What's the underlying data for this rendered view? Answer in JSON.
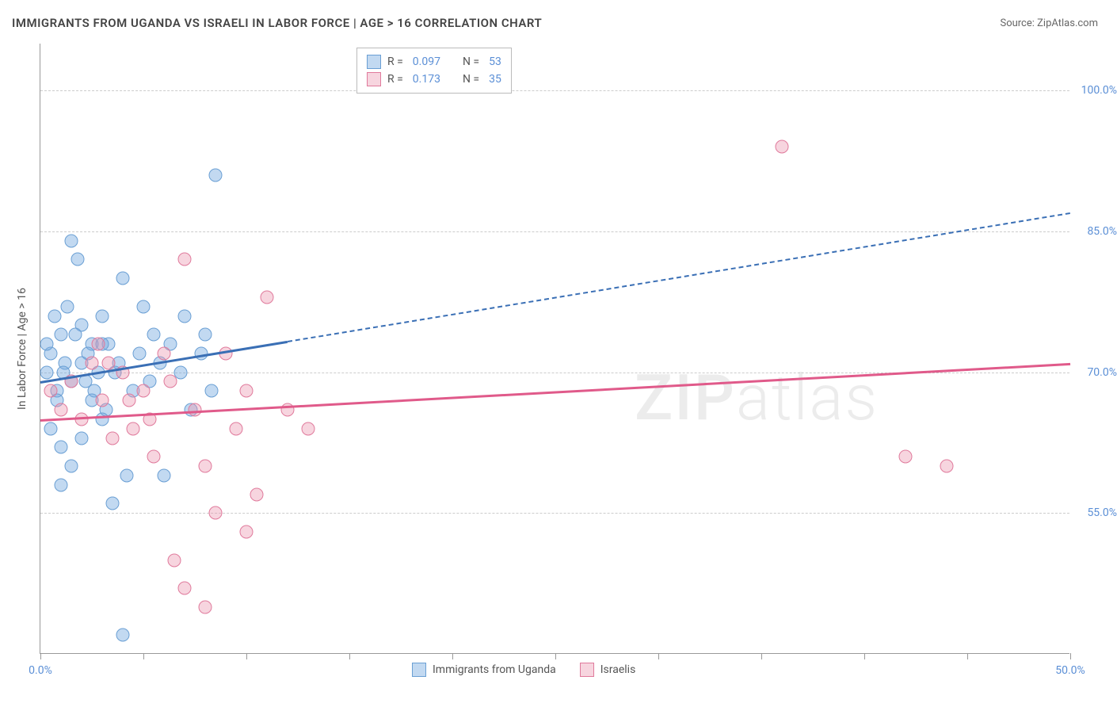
{
  "title": "IMMIGRANTS FROM UGANDA VS ISRAELI IN LABOR FORCE | AGE > 16 CORRELATION CHART",
  "source": "Source: ZipAtlas.com",
  "y_axis_label": "In Labor Force | Age > 16",
  "watermark_a": "ZIP",
  "watermark_b": "atlas",
  "chart": {
    "type": "scatter",
    "xlim": [
      0,
      50
    ],
    "ylim": [
      40,
      105
    ],
    "x_ticks": [
      0,
      5,
      10,
      15,
      20,
      25,
      30,
      35,
      40,
      45,
      50
    ],
    "x_tick_labels": {
      "0": "0.0%",
      "50": "50.0%"
    },
    "y_ticks": [
      55,
      70,
      85,
      100
    ],
    "y_tick_labels": {
      "55": "55.0%",
      "70": "70.0%",
      "85": "85.0%",
      "100": "100.0%"
    },
    "background_color": "#ffffff",
    "grid_color": "#cccccc",
    "axis_label_color": "#5b8fd6",
    "marker_size": 17,
    "series": [
      {
        "name": "Immigrants from Uganda",
        "fill": "rgba(120,170,225,0.45)",
        "stroke": "#6a9fd4",
        "r_value": "0.097",
        "n_value": "53",
        "trend": {
          "x1": 0,
          "y1": 69,
          "x2": 50,
          "y2": 87,
          "solid_until_x": 12,
          "color": "#3a6fb5"
        },
        "points": [
          [
            0.3,
            70
          ],
          [
            0.5,
            72
          ],
          [
            0.8,
            68
          ],
          [
            1.0,
            74
          ],
          [
            1.2,
            71
          ],
          [
            1.5,
            84
          ],
          [
            1.8,
            82
          ],
          [
            2.0,
            75
          ],
          [
            2.2,
            69
          ],
          [
            2.5,
            73
          ],
          [
            2.8,
            70
          ],
          [
            3.0,
            76
          ],
          [
            3.2,
            66
          ],
          [
            3.5,
            56
          ],
          [
            3.8,
            71
          ],
          [
            4.0,
            80
          ],
          [
            4.2,
            59
          ],
          [
            4.0,
            42
          ],
          [
            1.0,
            58
          ],
          [
            1.5,
            60
          ],
          [
            2.0,
            63
          ],
          [
            0.8,
            67
          ],
          [
            1.3,
            77
          ],
          [
            1.7,
            74
          ],
          [
            2.3,
            72
          ],
          [
            2.6,
            68
          ],
          [
            3.0,
            65
          ],
          [
            3.3,
            73
          ],
          [
            3.6,
            70
          ],
          [
            4.5,
            68
          ],
          [
            5.0,
            77
          ],
          [
            5.5,
            74
          ],
          [
            6.0,
            59
          ],
          [
            7.0,
            76
          ],
          [
            8.0,
            74
          ],
          [
            8.5,
            91
          ],
          [
            4.8,
            72
          ],
          [
            5.3,
            69
          ],
          [
            5.8,
            71
          ],
          [
            6.3,
            73
          ],
          [
            6.8,
            70
          ],
          [
            7.3,
            66
          ],
          [
            7.8,
            72
          ],
          [
            8.3,
            68
          ],
          [
            0.5,
            64
          ],
          [
            1.0,
            62
          ],
          [
            1.5,
            69
          ],
          [
            2.0,
            71
          ],
          [
            2.5,
            67
          ],
          [
            3.0,
            73
          ],
          [
            0.3,
            73
          ],
          [
            0.7,
            76
          ],
          [
            1.1,
            70
          ]
        ]
      },
      {
        "name": "Israelis",
        "fill": "rgba(235,150,175,0.40)",
        "stroke": "#e07a9c",
        "r_value": "0.173",
        "n_value": "35",
        "trend": {
          "x1": 0,
          "y1": 65,
          "x2": 50,
          "y2": 71,
          "solid_until_x": 50,
          "color": "#e05a8a"
        },
        "points": [
          [
            0.5,
            68
          ],
          [
            1.0,
            66
          ],
          [
            1.5,
            69
          ],
          [
            2.0,
            65
          ],
          [
            2.5,
            71
          ],
          [
            3.0,
            67
          ],
          [
            3.5,
            63
          ],
          [
            4.0,
            70
          ],
          [
            4.5,
            64
          ],
          [
            5.0,
            68
          ],
          [
            5.5,
            61
          ],
          [
            6.0,
            72
          ],
          [
            6.5,
            50
          ],
          [
            7.0,
            82
          ],
          [
            7.5,
            66
          ],
          [
            8.0,
            60
          ],
          [
            8.5,
            55
          ],
          [
            9.0,
            72
          ],
          [
            9.5,
            64
          ],
          [
            10.0,
            68
          ],
          [
            10.0,
            53
          ],
          [
            10.5,
            57
          ],
          [
            11.0,
            78
          ],
          [
            8.0,
            45
          ],
          [
            7.0,
            47
          ],
          [
            12.0,
            66
          ],
          [
            13.0,
            64
          ],
          [
            2.8,
            73
          ],
          [
            3.3,
            71
          ],
          [
            4.3,
            67
          ],
          [
            5.3,
            65
          ],
          [
            36.0,
            94
          ],
          [
            42.0,
            61
          ],
          [
            44.0,
            60
          ],
          [
            6.3,
            69
          ]
        ]
      }
    ],
    "legend_bottom": [
      {
        "label": "Immigrants from Uganda",
        "fill": "rgba(120,170,225,0.45)",
        "stroke": "#6a9fd4"
      },
      {
        "label": "Israelis",
        "fill": "rgba(235,150,175,0.40)",
        "stroke": "#e07a9c"
      }
    ]
  }
}
